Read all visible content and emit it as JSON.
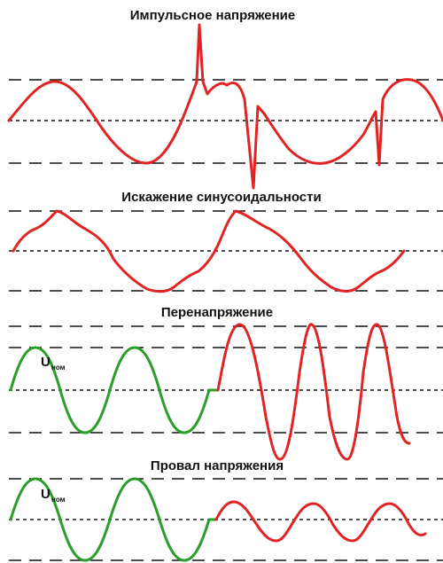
{
  "colors": {
    "normal_wave": "#2a9d2a",
    "disturbed_wave": "#e02424",
    "guides": "#111111"
  },
  "unom": {
    "main": "U",
    "sub": "ном"
  },
  "panels": [
    {
      "title": "Импульсное напряжение"
    },
    {
      "title": "Искажение синусоидальности"
    },
    {
      "title": "Перенапряжение"
    },
    {
      "title": "Провал напряжения"
    }
  ]
}
